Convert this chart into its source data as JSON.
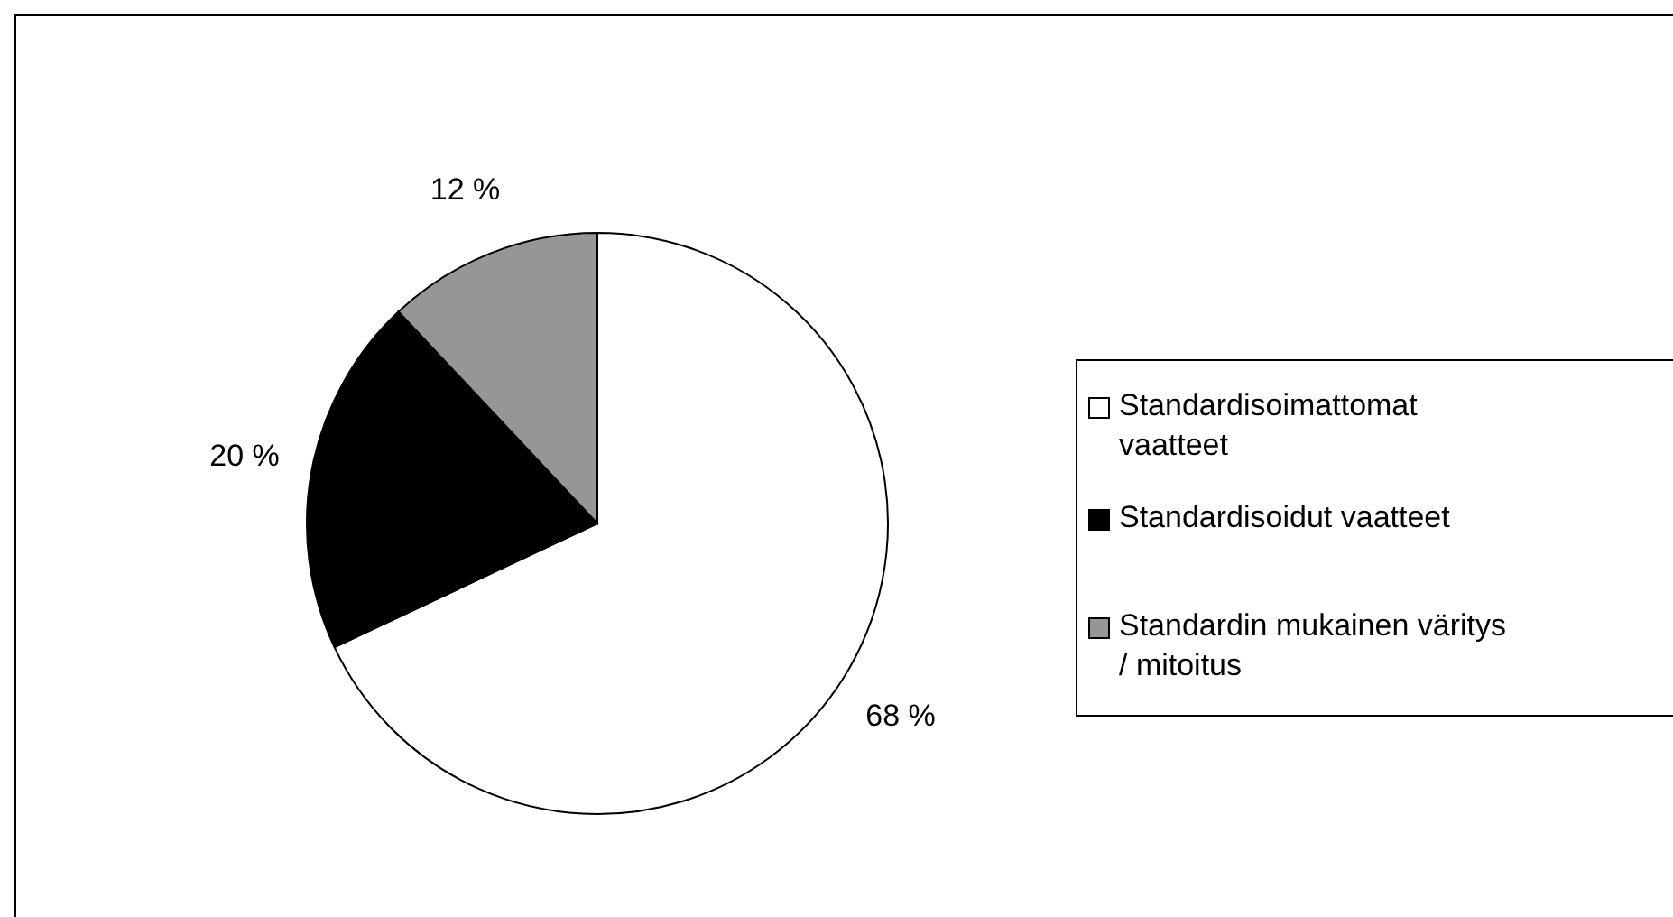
{
  "chart_data": {
    "type": "pie",
    "categories": [
      "Standardisoimattomat vaatteet",
      "Standardisoidut vaatteet",
      "Standardin mukainen väritys / mitoitus"
    ],
    "values": [
      68,
      20,
      12
    ],
    "colors": [
      "#ffffff",
      "#000000",
      "#969696"
    ],
    "value_labels": [
      "68 %",
      "20 %",
      "12 %"
    ],
    "legend": "right"
  }
}
